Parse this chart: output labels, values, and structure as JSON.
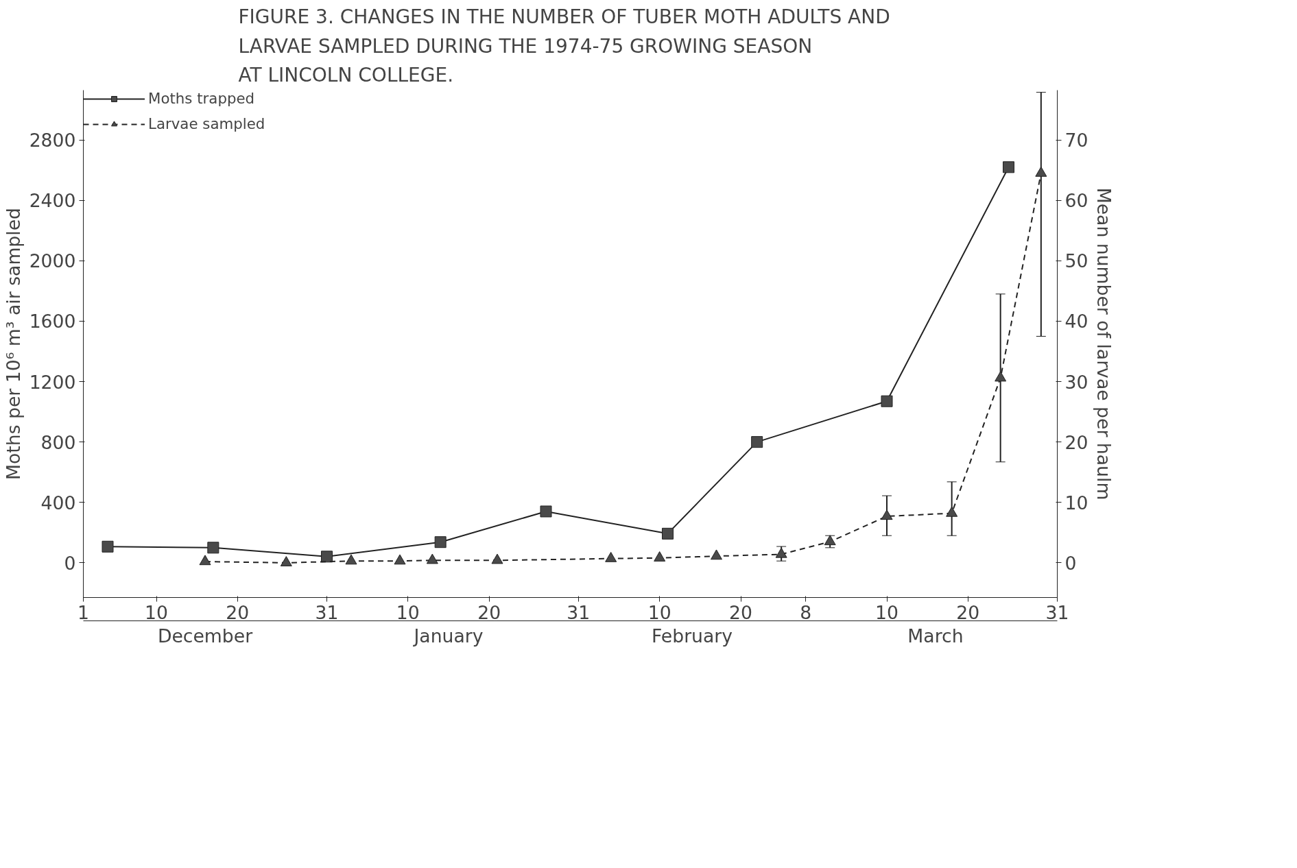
{
  "chart_data": {
    "type": "line",
    "title": "FIGURE 3.   CHANGES IN THE NUMBER OF TUBER MOTH ADULTS AND\nLARVAE SAMPLED DURING THE 1974-75 GROWING SEASON\nAT LINCOLN COLLEGE.",
    "ylabel": "Moths per 10⁶ m³ air sampled",
    "y2label": "Mean number of larvae per haulm",
    "xlim": [
      "1974-12-01",
      "1975-03-31"
    ],
    "xticks": [
      {
        "value": "1974-12-01",
        "label": "1"
      },
      {
        "value": "1974-12-10",
        "label": "10"
      },
      {
        "value": "1974-12-20",
        "label": "20"
      },
      {
        "value": "1974-12-31",
        "label": "31"
      },
      {
        "value": "1975-01-10",
        "label": "10"
      },
      {
        "value": "1975-01-20",
        "label": "20"
      },
      {
        "value": "1975-01-31",
        "label": "31"
      },
      {
        "value": "1975-02-10",
        "label": "10"
      },
      {
        "value": "1975-02-20",
        "label": "20"
      },
      {
        "value": "1975-02-28",
        "label": "8"
      },
      {
        "value": "1975-03-10",
        "label": "10"
      },
      {
        "value": "1975-03-20",
        "label": "20"
      },
      {
        "value": "1975-03-31",
        "label": "31"
      }
    ],
    "ylim": [
      -230,
      3130
    ],
    "yticks": [
      0,
      400,
      800,
      1200,
      1600,
      2000,
      2400,
      2800
    ],
    "y2lim": [
      -5.75,
      78.25
    ],
    "y2ticks": [
      0,
      10,
      20,
      30,
      40,
      50,
      60,
      70
    ],
    "annotations": [
      "December",
      "January",
      "February",
      "March"
    ],
    "legend": "top left",
    "grid": false,
    "series": [
      {
        "name": "Moths trapped",
        "color": "#4a4a4a",
        "marker": "square",
        "line_style": "solid",
        "x": [
          "1974-12-04",
          "1974-12-17",
          "1974-12-31",
          "1975-01-14",
          "1975-01-27",
          "1975-02-11",
          "1975-02-22",
          "1975-03-10",
          "1975-03-25"
        ],
        "values": [
          107,
          100,
          41,
          137,
          340,
          193,
          800,
          1070,
          2620
        ]
      },
      {
        "name": "Larvae sampled",
        "color": "#4a4a4a",
        "marker": "triangle",
        "line_style": "dashed",
        "axis": "y2",
        "x": [
          "1974-12-16",
          "1974-12-26",
          "1975-01-03",
          "1975-01-09",
          "1975-01-13",
          "1975-01-21",
          "1975-02-04",
          "1975-02-10",
          "1975-02-17",
          "1975-02-25",
          "1975-03-03",
          "1975-03-10",
          "1975-03-18",
          "1975-03-24",
          "1975-03-29"
        ],
        "values": [
          0.2,
          0,
          0.3,
          0.3,
          0.4,
          0.4,
          0.7,
          0.8,
          1.1,
          1.4,
          3.5,
          7.7,
          8.2,
          30.6,
          64.5
        ],
        "errors": [
          null,
          null,
          null,
          null,
          null,
          null,
          null,
          null,
          null,
          [
            0.3,
            2.7
          ],
          [
            2.5,
            4.5
          ],
          [
            4.5,
            11.1
          ],
          [
            4.5,
            13.4
          ],
          [
            16.7,
            44.5
          ],
          [
            37.5,
            77.9
          ]
        ]
      }
    ]
  }
}
